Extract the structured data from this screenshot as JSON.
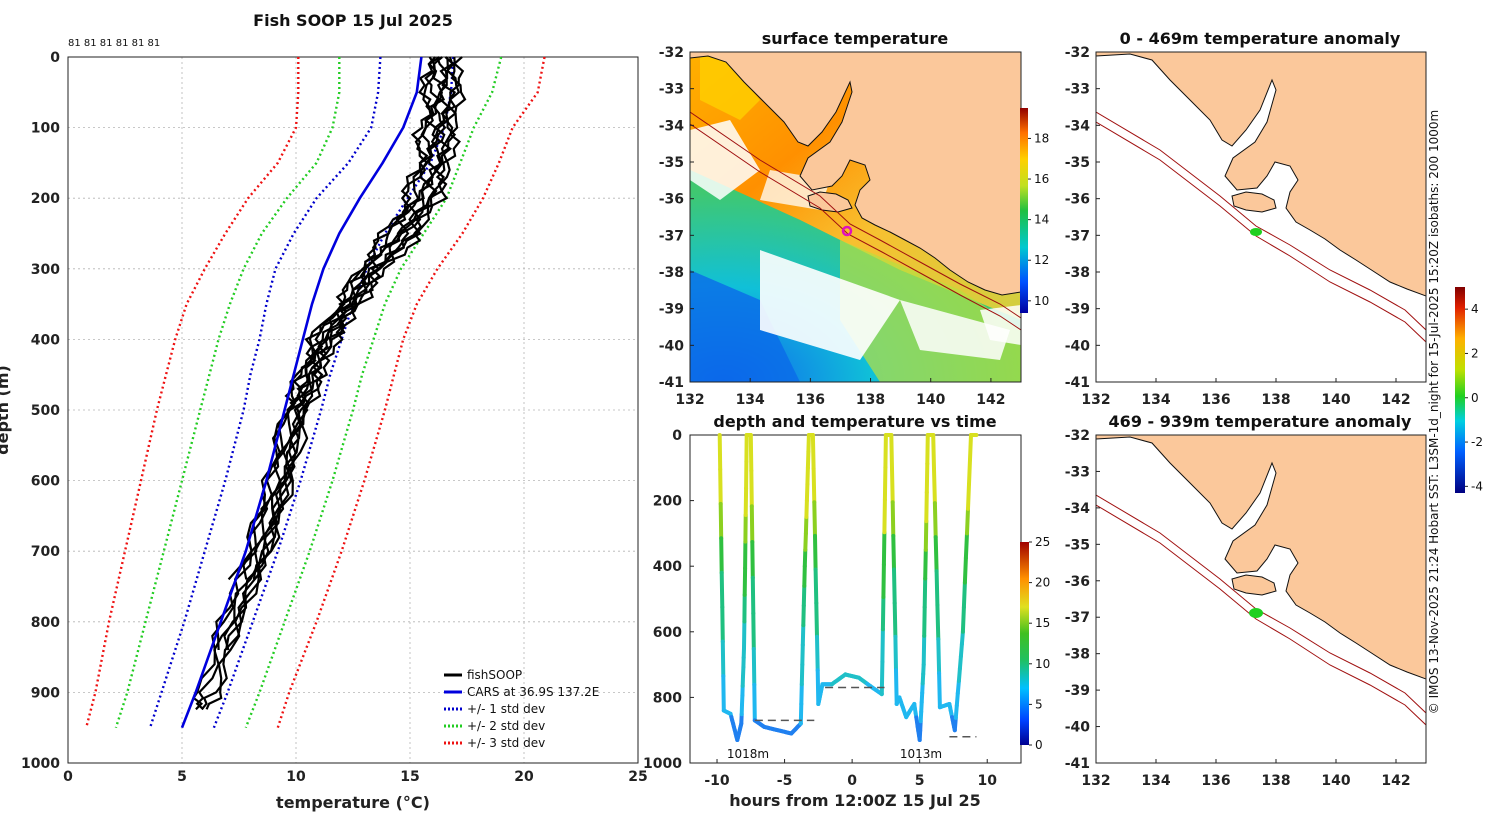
{
  "chart_data": [
    {
      "type": "line",
      "title": "Fish SOOP 15 Jul 2025",
      "xlabel": "temperature (°C)",
      "ylabel": "depth (m)",
      "xlim": [
        0,
        25
      ],
      "ylim": [
        1000,
        0
      ],
      "xticks": [
        0,
        5,
        10,
        15,
        20,
        25
      ],
      "yticks": [
        0,
        100,
        200,
        300,
        400,
        500,
        600,
        700,
        800,
        900,
        1000
      ],
      "grid": true,
      "counts_label": "81 81 81 81 81 81",
      "legend": [
        "fishSOOP",
        "CARS at 36.9S 137.2E",
        "+/- 1 std dev",
        "+/- 2 std dev",
        "+/- 3 std dev"
      ],
      "colors": {
        "fish": "#000000",
        "cars": "#0000dd",
        "sd1": "#0000cc",
        "sd2": "#22cc22",
        "sd3": "#ee1111"
      },
      "series": [
        {
          "name": "CARS",
          "depth": [
            0,
            50,
            100,
            150,
            200,
            250,
            300,
            350,
            400,
            450,
            500,
            600,
            700,
            800,
            900,
            950
          ],
          "temp": [
            15.5,
            15.3,
            14.7,
            13.8,
            12.8,
            11.9,
            11.2,
            10.7,
            10.3,
            9.9,
            9.5,
            8.7,
            7.8,
            6.7,
            5.6,
            5.0
          ]
        },
        {
          "name": "+1 std dev",
          "depth": [
            0,
            50,
            100,
            150,
            200,
            250,
            300,
            350,
            400,
            450,
            500,
            600,
            700,
            800,
            900,
            950
          ],
          "temp": [
            16.9,
            16.8,
            16.5,
            15.9,
            14.9,
            13.9,
            13.1,
            12.5,
            12.0,
            11.5,
            11.1,
            10.2,
            9.2,
            8.1,
            7.0,
            6.4
          ]
        },
        {
          "name": "-1 std dev",
          "depth": [
            0,
            50,
            100,
            150,
            200,
            250,
            300,
            350,
            400,
            450,
            500,
            600,
            700,
            800,
            900,
            950
          ],
          "temp": [
            13.7,
            13.6,
            13.3,
            12.3,
            10.9,
            9.9,
            9.1,
            8.7,
            8.4,
            8.0,
            7.7,
            6.9,
            6.0,
            5.1,
            4.1,
            3.6
          ]
        },
        {
          "name": "+2 std dev",
          "depth": [
            0,
            50,
            100,
            150,
            200,
            250,
            300,
            350,
            400,
            450,
            500,
            600,
            700,
            800,
            900,
            950
          ],
          "temp": [
            19.0,
            18.6,
            17.8,
            17.2,
            16.6,
            15.6,
            14.6,
            13.9,
            13.4,
            12.9,
            12.5,
            11.6,
            10.6,
            9.5,
            8.4,
            7.8
          ]
        },
        {
          "name": "-2 std dev",
          "depth": [
            0,
            50,
            100,
            150,
            200,
            250,
            300,
            350,
            400,
            450,
            500,
            600,
            700,
            800,
            900,
            950
          ],
          "temp": [
            11.9,
            11.9,
            11.6,
            10.9,
            9.6,
            8.5,
            7.7,
            7.1,
            6.6,
            6.2,
            5.8,
            5.0,
            4.2,
            3.4,
            2.6,
            2.1
          ]
        },
        {
          "name": "+3 std dev",
          "depth": [
            0,
            50,
            100,
            150,
            200,
            250,
            300,
            350,
            400,
            450,
            500,
            600,
            700,
            800,
            900,
            950
          ],
          "temp": [
            20.9,
            20.6,
            19.5,
            18.9,
            18.2,
            17.3,
            16.2,
            15.3,
            14.7,
            14.3,
            13.9,
            13.0,
            12.0,
            10.9,
            9.7,
            9.2
          ]
        },
        {
          "name": "-3 std dev",
          "depth": [
            0,
            50,
            100,
            150,
            200,
            250,
            300,
            350,
            400,
            450,
            500,
            600,
            700,
            800,
            900,
            950
          ],
          "temp": [
            10.1,
            10.1,
            10.0,
            9.2,
            7.9,
            6.9,
            6.0,
            5.2,
            4.7,
            4.3,
            3.9,
            3.2,
            2.5,
            1.8,
            1.2,
            0.8
          ]
        },
        {
          "name": "fishSOOP",
          "depth": [
            0,
            50,
            100,
            150,
            200,
            250,
            300,
            350,
            400,
            450,
            500,
            600,
            700,
            800,
            900,
            940
          ],
          "temp_mean": [
            16.4,
            16.4,
            16.2,
            16.0,
            15.5,
            14.6,
            13.3,
            12.3,
            11.2,
            10.6,
            10.0,
            9.3,
            8.4,
            7.1,
            6.1,
            5.6
          ]
        }
      ]
    },
    {
      "type": "heatmap",
      "title": "surface temperature",
      "xlim": [
        132,
        143
      ],
      "ylim": [
        -41,
        -32
      ],
      "xticks": [
        132,
        134,
        136,
        138,
        140,
        142
      ],
      "yticks": [
        -32,
        -33,
        -34,
        -35,
        -36,
        -37,
        -38,
        -39,
        -40,
        -41
      ],
      "colorbar": {
        "min": 9.4,
        "max": 19.5,
        "ticks": [
          10,
          12,
          14,
          16,
          18
        ]
      },
      "marker": {
        "lon": 137.2,
        "lat": -36.9
      }
    },
    {
      "type": "line",
      "title": "depth and temperature vs time",
      "xlabel": "hours from 12:00Z 15 Jul 25",
      "xlim": [
        -12,
        12.5
      ],
      "ylim": [
        1000,
        0
      ],
      "xticks": [
        -10,
        -5,
        0,
        5,
        10
      ],
      "yticks": [
        0,
        200,
        400,
        600,
        800,
        1000
      ],
      "colorbar": {
        "min": 0,
        "max": 25,
        "ticks": [
          0,
          5,
          10,
          15,
          20,
          25
        ]
      },
      "annotations": [
        "1018m",
        "1013m"
      ],
      "series": [
        {
          "name": "depth",
          "hours": [
            -9.8,
            -9.5,
            -9.0,
            -8.5,
            -8.2,
            -8.0,
            -7.8,
            -7.5,
            -7.2,
            -6.5,
            -5.5,
            -4.5,
            -3.8,
            -3.5,
            -3.2,
            -2.9,
            -2.5,
            -2.2,
            -1.5,
            -0.5,
            0.5,
            1.5,
            2.2,
            2.5,
            2.9,
            3.3,
            3.5,
            4.0,
            4.6,
            5.0,
            5.3,
            5.6,
            6.0,
            6.5,
            7.2,
            7.6,
            8.2,
            8.8,
            9.2
          ],
          "depth": [
            0,
            840,
            850,
            930,
            880,
            650,
            0,
            0,
            870,
            890,
            900,
            910,
            880,
            400,
            0,
            0,
            820,
            760,
            760,
            730,
            740,
            770,
            790,
            0,
            0,
            820,
            800,
            860,
            820,
            930,
            700,
            0,
            0,
            830,
            820,
            900,
            600,
            0,
            0
          ]
        }
      ],
      "reference_lines": [
        {
          "depth": 870,
          "hours": [
            -7.2,
            -2.8
          ]
        },
        {
          "depth": 770,
          "hours": [
            -2.0,
            2.4
          ]
        },
        {
          "depth": 920,
          "hours": [
            7.2,
            9.2
          ]
        }
      ]
    },
    {
      "type": "heatmap",
      "title": "0 - 469m temperature anomaly",
      "xlim": [
        132,
        143
      ],
      "ylim": [
        -41,
        -32
      ],
      "xticks": [
        132,
        134,
        136,
        138,
        140,
        142
      ],
      "yticks": [
        -32,
        -33,
        -34,
        -35,
        -36,
        -37,
        -38,
        -39,
        -40,
        -41
      ]
    },
    {
      "type": "heatmap",
      "title": "469 - 939m temperature anomaly",
      "xlim": [
        132,
        143
      ],
      "ylim": [
        -41,
        -32
      ],
      "xticks": [
        132,
        134,
        136,
        138,
        140,
        142
      ],
      "yticks": [
        -32,
        -33,
        -34,
        -35,
        -36,
        -37,
        -38,
        -39,
        -40,
        -41
      ],
      "colorbar": {
        "min": -4.3,
        "max": 5,
        "ticks": [
          -4,
          -2,
          0,
          2,
          4
        ]
      }
    }
  ],
  "credit": "© IMOS 13-Nov-2025 21:24 Hobart SST: L3SM-1d_night for 15-Jul-2025 15:20Z isobaths: 200  1000m"
}
